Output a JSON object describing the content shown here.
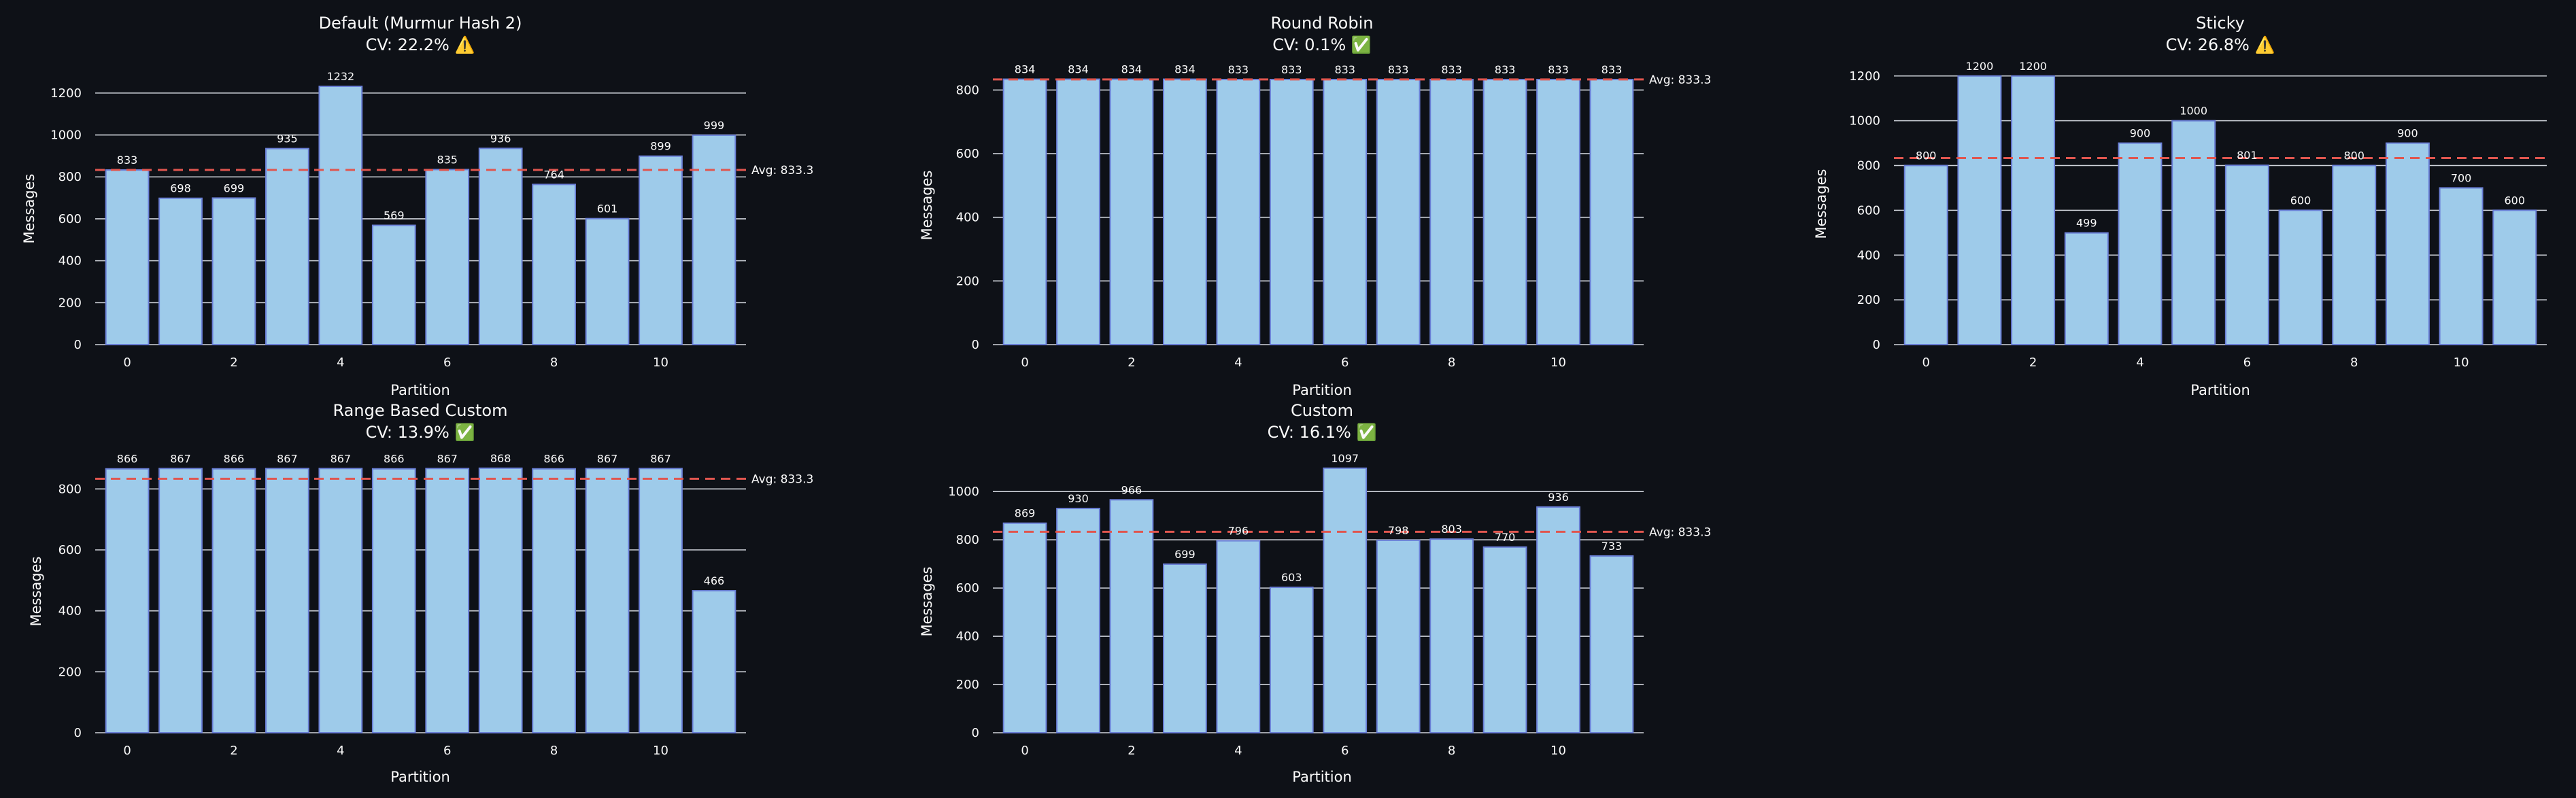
{
  "colors": {
    "background": "#0e1117",
    "bar": "#9ecbea",
    "bar_edge": "#6a7fd6",
    "grid": "#cfd3da",
    "avg_line": "#e0564f",
    "text": "#fafafa"
  },
  "chart_data": [
    {
      "id": "default",
      "type": "bar",
      "title": "Default (Murmur Hash 2)",
      "subtitle": "CV: 22.2% ⚠️",
      "status_icon": "warning-icon",
      "xlabel": "Partition",
      "ylabel": "Messages",
      "categories": [
        0,
        1,
        2,
        3,
        4,
        5,
        6,
        7,
        8,
        9,
        10,
        11
      ],
      "values": [
        833,
        698,
        699,
        935,
        1232,
        569,
        835,
        936,
        764,
        601,
        899,
        999
      ],
      "x_ticks": [
        0,
        2,
        4,
        6,
        8,
        10
      ],
      "y_ticks": [
        0,
        200,
        400,
        600,
        800,
        1000,
        1200
      ],
      "ylim": [
        0,
        1293.6
      ],
      "avg": 833.3,
      "avg_label": "Avg: 833.3"
    },
    {
      "id": "round-robin",
      "type": "bar",
      "title": "Round Robin",
      "subtitle": "CV: 0.1% ✅",
      "status_icon": "check-icon",
      "xlabel": "Partition",
      "ylabel": "Messages",
      "categories": [
        0,
        1,
        2,
        3,
        4,
        5,
        6,
        7,
        8,
        9,
        10,
        11
      ],
      "values": [
        834,
        834,
        834,
        834,
        833,
        833,
        833,
        833,
        833,
        833,
        833,
        833
      ],
      "x_ticks": [
        0,
        2,
        4,
        6,
        8,
        10
      ],
      "y_ticks": [
        0,
        200,
        400,
        600,
        800
      ],
      "ylim": [
        0,
        875.7
      ],
      "avg": 833.3,
      "avg_label": "Avg: 833.3"
    },
    {
      "id": "sticky",
      "type": "bar",
      "title": "Sticky",
      "subtitle": "CV: 26.8% ⚠️",
      "status_icon": "warning-icon",
      "xlabel": "Partition",
      "ylabel": "Messages",
      "categories": [
        0,
        1,
        2,
        3,
        4,
        5,
        6,
        7,
        8,
        9,
        10,
        11
      ],
      "values": [
        800,
        1200,
        1200,
        499,
        900,
        1000,
        801,
        600,
        800,
        900,
        700,
        600
      ],
      "x_ticks": [
        0,
        2,
        4,
        6,
        8,
        10
      ],
      "y_ticks": [
        0,
        200,
        400,
        600,
        800,
        1000,
        1200
      ],
      "ylim": [
        0,
        1260
      ],
      "avg": 833.3,
      "avg_label": ""
    },
    {
      "id": "range-based-custom",
      "type": "bar",
      "title": "Range Based Custom",
      "subtitle": "CV: 13.9% ✅",
      "status_icon": "check-icon",
      "xlabel": "Partition",
      "ylabel": "Messages",
      "categories": [
        0,
        1,
        2,
        3,
        4,
        5,
        6,
        7,
        8,
        9,
        10,
        11
      ],
      "values": [
        866,
        867,
        866,
        867,
        867,
        866,
        867,
        868,
        866,
        867,
        867,
        466
      ],
      "x_ticks": [
        0,
        2,
        4,
        6,
        8,
        10
      ],
      "y_ticks": [
        0,
        200,
        400,
        600,
        800
      ],
      "ylim": [
        0,
        910
      ],
      "avg": 833.3,
      "avg_label": "Avg: 833.3"
    },
    {
      "id": "custom",
      "type": "bar",
      "title": "Custom",
      "subtitle": "CV: 16.1% ✅",
      "status_icon": "check-icon",
      "xlabel": "Partition",
      "ylabel": "Messages",
      "categories": [
        0,
        1,
        2,
        3,
        4,
        5,
        6,
        7,
        8,
        9,
        10,
        11
      ],
      "values": [
        869,
        930,
        966,
        699,
        796,
        603,
        1097,
        798,
        803,
        770,
        936,
        733
      ],
      "x_ticks": [
        0,
        2,
        4,
        6,
        8,
        10
      ],
      "y_ticks": [
        0,
        200,
        400,
        600,
        800,
        1000
      ],
      "ylim": [
        0,
        1150
      ],
      "avg": 833.3,
      "avg_label": "Avg: 833.3"
    }
  ]
}
